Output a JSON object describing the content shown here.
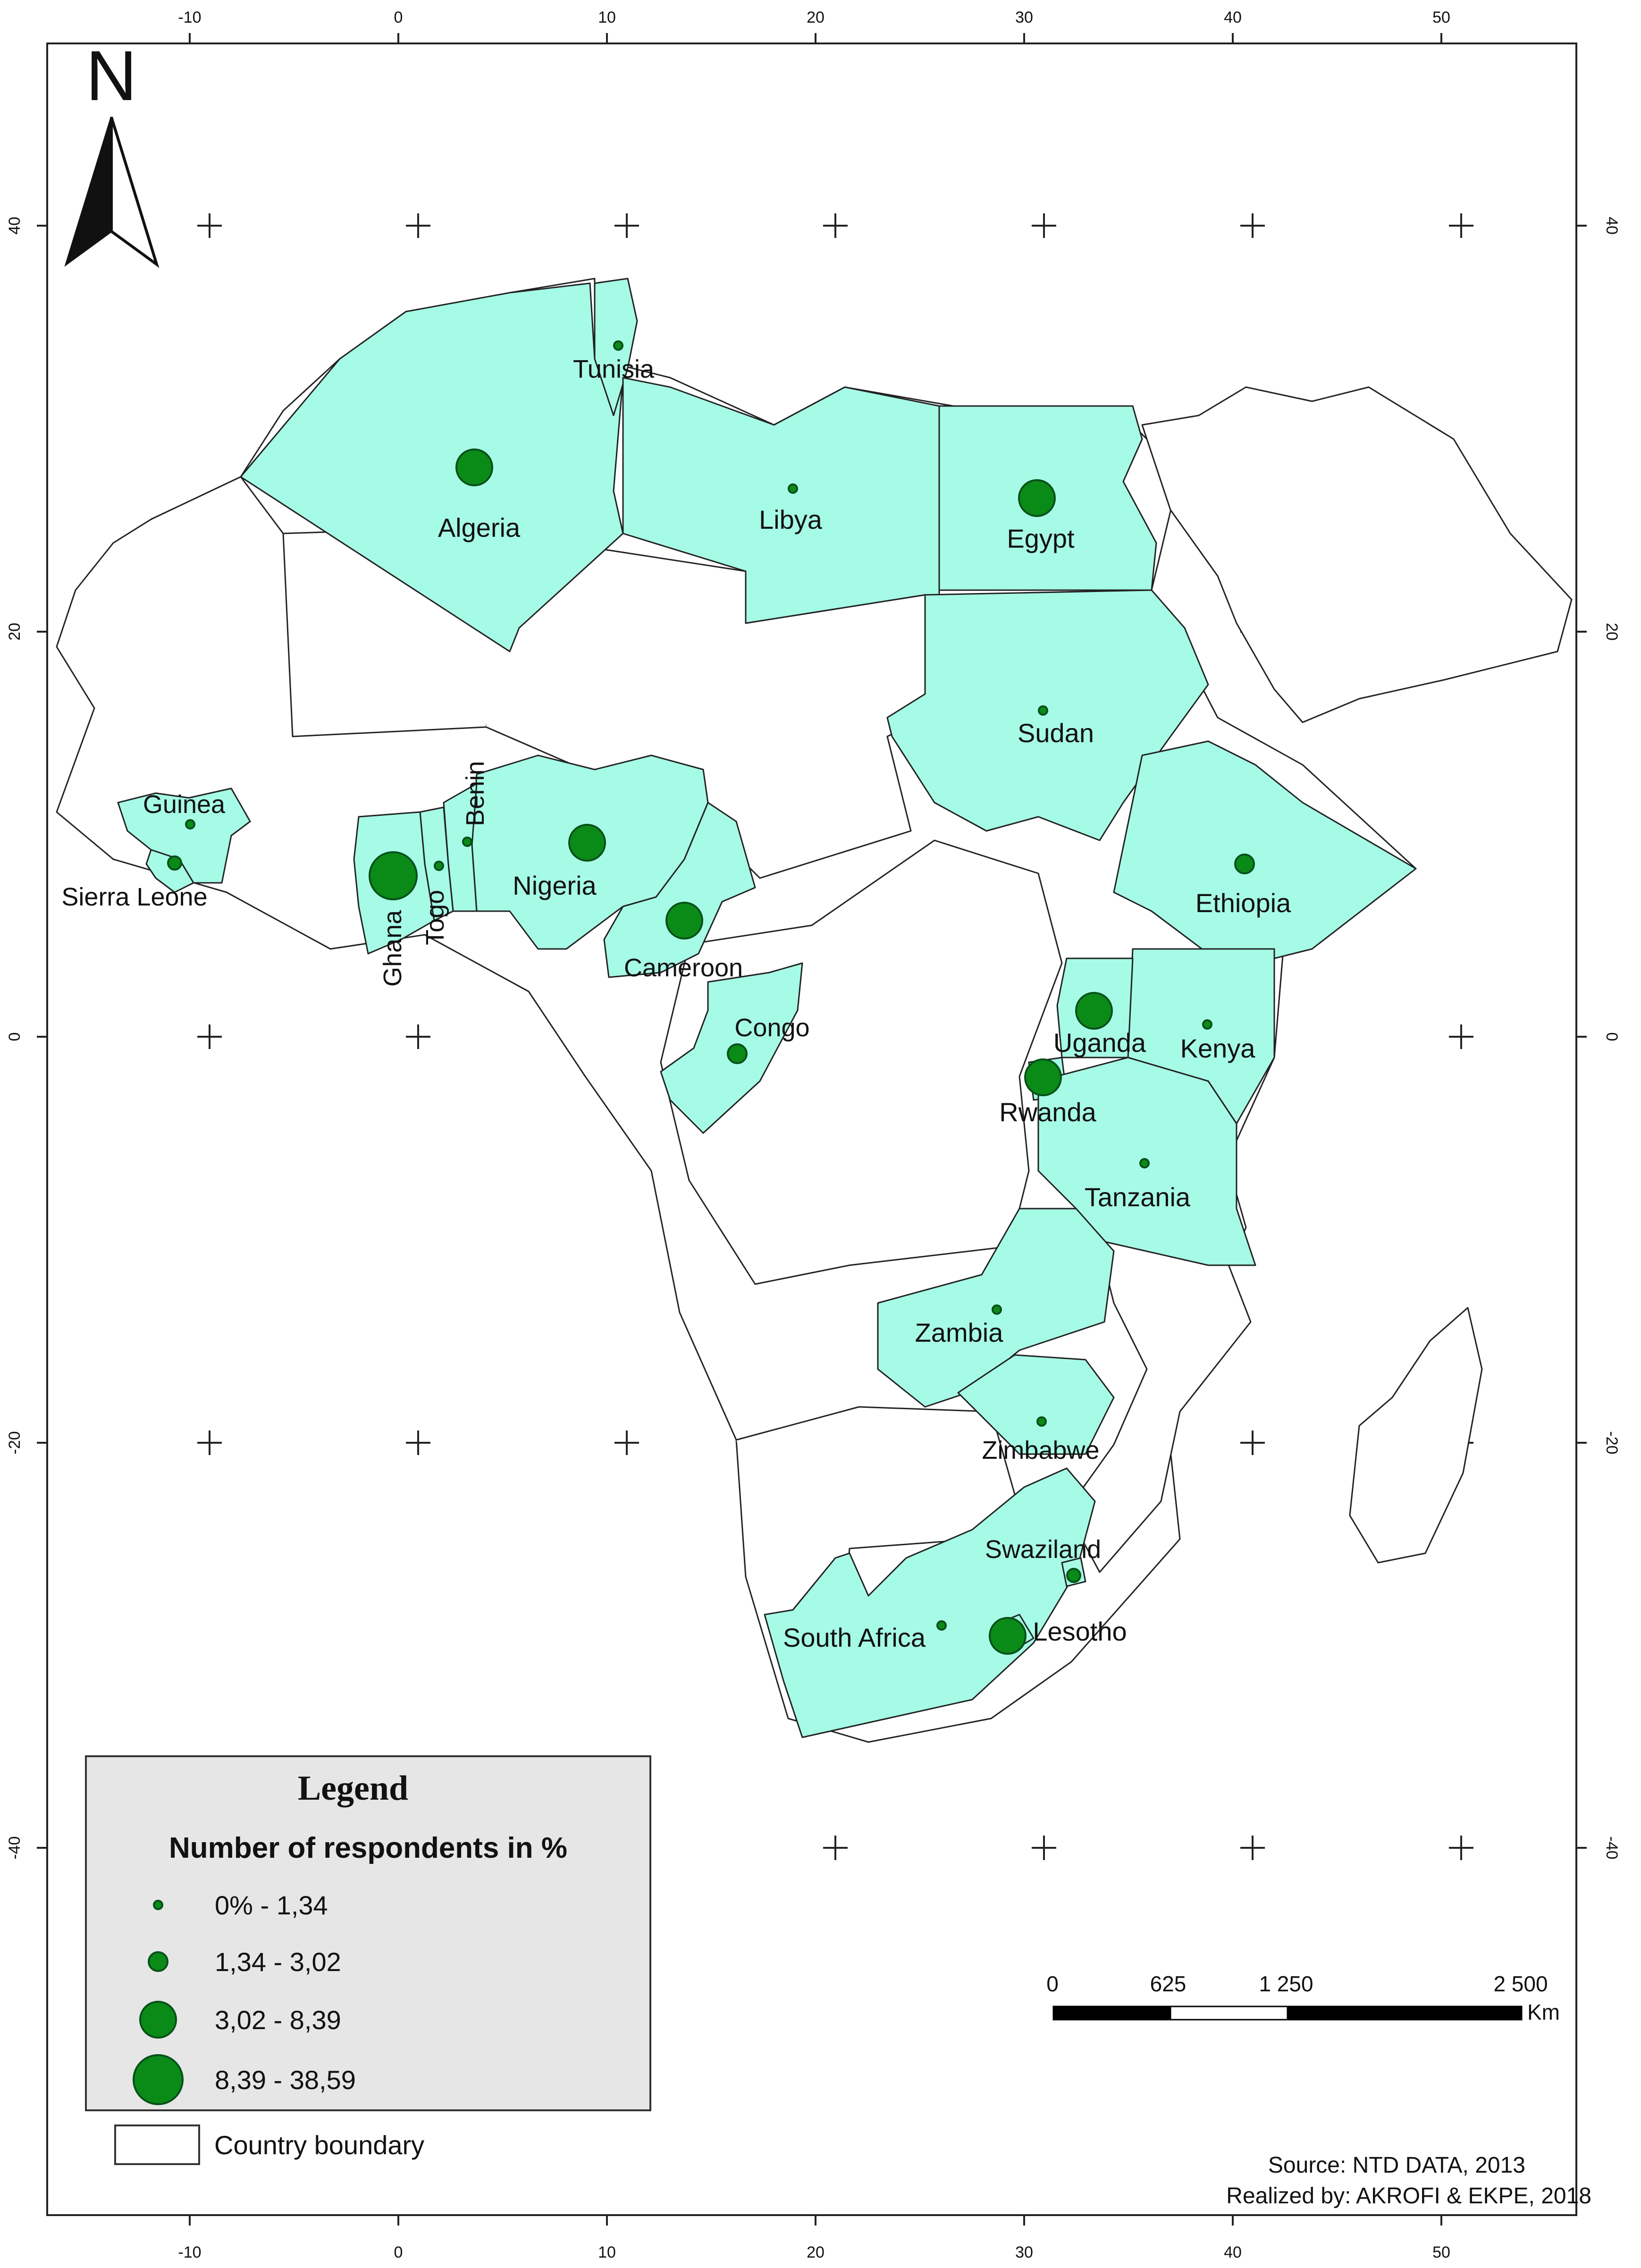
{
  "map": {
    "north_label": "N",
    "longitude_ticks": [
      "-10",
      "0",
      "10",
      "20",
      "30",
      "40",
      "50"
    ],
    "latitude_ticks": [
      "40",
      "20",
      "0",
      "-20",
      "-40"
    ],
    "colors": {
      "selected_fill": "#a6fbe6",
      "unselected_fill": "#ffffff",
      "symbol_fill": "#0a8a17",
      "legend_bg": "#e6e6e6"
    },
    "countries": [
      {
        "name": "Tunisia",
        "symbol_class": 1
      },
      {
        "name": "Algeria",
        "symbol_class": 3
      },
      {
        "name": "Libya",
        "symbol_class": 1
      },
      {
        "name": "Egypt",
        "symbol_class": 3
      },
      {
        "name": "Sudan",
        "symbol_class": 1
      },
      {
        "name": "Guinea",
        "symbol_class": 1
      },
      {
        "name": "Sierra Leone",
        "symbol_class": 2
      },
      {
        "name": "Ghana",
        "symbol_class": 4
      },
      {
        "name": "Togo",
        "symbol_class": 1
      },
      {
        "name": "Benin",
        "symbol_class": 1
      },
      {
        "name": "Nigeria",
        "symbol_class": 3
      },
      {
        "name": "Cameroon",
        "symbol_class": 3
      },
      {
        "name": "Ethiopia",
        "symbol_class": 2
      },
      {
        "name": "Congo",
        "symbol_class": 2
      },
      {
        "name": "Uganda",
        "symbol_class": 3
      },
      {
        "name": "Kenya",
        "symbol_class": 1
      },
      {
        "name": "Rwanda",
        "symbol_class": 3
      },
      {
        "name": "Tanzania",
        "symbol_class": 1
      },
      {
        "name": "Zambia",
        "symbol_class": 1
      },
      {
        "name": "Zimbabwe",
        "symbol_class": 1
      },
      {
        "name": "Swaziland",
        "symbol_class": 1
      },
      {
        "name": "South Africa",
        "symbol_class": 1
      },
      {
        "name": "Lesotho",
        "symbol_class": 3
      }
    ]
  },
  "legend": {
    "title": "Legend",
    "subtitle": "Number of respondents in %",
    "classes": [
      "0% - 1,34",
      "1,34 - 3,02",
      "3,02 - 8,39",
      "8,39 - 38,59"
    ],
    "boundary_label": "Country boundary"
  },
  "scale_bar": {
    "labels": [
      "0",
      "625",
      "1 250",
      "2 500"
    ],
    "unit": "Km"
  },
  "credits": {
    "source": "Source: NTD DATA, 2013",
    "author": "Realized by: AKROFI & EKPE, 2018"
  }
}
